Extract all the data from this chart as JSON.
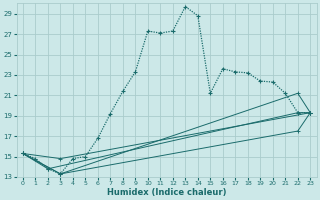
{
  "xlabel": "Humidex (Indice chaleur)",
  "bg_color": "#cce8e8",
  "grid_color": "#aacccc",
  "line_color": "#1a6b6b",
  "xlim": [
    -0.5,
    23.5
  ],
  "ylim": [
    13,
    30
  ],
  "xticks": [
    0,
    1,
    2,
    3,
    4,
    5,
    6,
    7,
    8,
    9,
    10,
    11,
    12,
    13,
    14,
    15,
    16,
    17,
    18,
    19,
    20,
    21,
    22,
    23
  ],
  "yticks": [
    13,
    15,
    17,
    19,
    21,
    23,
    25,
    27,
    29
  ],
  "series1_x": [
    0,
    1,
    2,
    3,
    4,
    5,
    6,
    7,
    8,
    9,
    10,
    11,
    12,
    13,
    14,
    15,
    16,
    17,
    18,
    19,
    20,
    21,
    22,
    23
  ],
  "series1_y": [
    15.3,
    14.8,
    13.8,
    13.3,
    14.8,
    15.0,
    16.8,
    19.2,
    21.4,
    23.3,
    27.3,
    27.1,
    27.3,
    29.7,
    28.8,
    21.2,
    23.6,
    23.3,
    23.2,
    22.4,
    22.3,
    21.2,
    19.3,
    19.3
  ],
  "series2_x": [
    0,
    3,
    23
  ],
  "series2_y": [
    15.3,
    14.8,
    19.3
  ],
  "series3_x": [
    0,
    3,
    22,
    23
  ],
  "series3_y": [
    15.3,
    13.3,
    21.2,
    19.3
  ],
  "series4_x": [
    0,
    2,
    22,
    23
  ],
  "series4_y": [
    15.3,
    13.8,
    19.3,
    19.3
  ],
  "series5_x": [
    0,
    3,
    22,
    23
  ],
  "series5_y": [
    15.3,
    13.3,
    17.5,
    19.3
  ]
}
